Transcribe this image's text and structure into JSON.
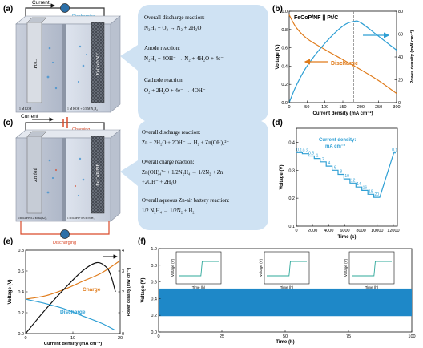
{
  "panel_labels": {
    "a": "(a)",
    "b": "(b)",
    "c": "(c)",
    "d": "(d)",
    "e": "(e)",
    "f": "(f)"
  },
  "a": {
    "current": "Current",
    "discharging": "Discharging",
    "electrode_left": "Pt/C",
    "electrode_right": "FeCoP/NF",
    "label_left": "1 M KOH",
    "label_right": "1 M KOH + 0.5 M N₂H₄",
    "reactions": [
      {
        "title": "Overall discharge reaction:",
        "eq": "N₂H₄ + O₂ → N₂ + 2H₂O"
      },
      {
        "title": "Anode reaction:",
        "eq": "N₂H₄ + 4OH⁻ → N₂ + 4H₂O + 4e⁻"
      },
      {
        "title": "Cathode reaction:",
        "eq": "O₂ + 2H₂O + 4e⁻ → 4OH⁻"
      }
    ]
  },
  "b": {
    "legend": "FeCoP/NF || Pt/C",
    "series_label": "Discharge",
    "chart_data": {
      "type": "line",
      "xlabel": "Current density (mA cm⁻²)",
      "ylabel_left": "Voltage (V)",
      "ylabel_right": "Power density (mW cm⁻²)",
      "xlim": [
        0,
        300
      ],
      "ylim_left": [
        0,
        1.0
      ],
      "ylim_right": [
        0,
        80
      ],
      "x_ticks": [
        "0",
        "50",
        "100",
        "150",
        "200",
        "250",
        "300"
      ],
      "y_ticks_left": [
        "0.0",
        "0.2",
        "0.4",
        "0.6",
        "0.8",
        "1.0"
      ],
      "y_ticks_right": [
        "0",
        "20",
        "40",
        "60",
        "80"
      ],
      "voltage": {
        "x": [
          0,
          20,
          50,
          100,
          150,
          200,
          250,
          300
        ],
        "y": [
          0.96,
          0.82,
          0.7,
          0.58,
          0.47,
          0.36,
          0.24,
          0.1
        ]
      },
      "power": {
        "x": [
          0,
          20,
          50,
          100,
          150,
          180,
          200,
          250,
          300
        ],
        "y": [
          0,
          15,
          32,
          52,
          67,
          71,
          70,
          58,
          46
        ]
      },
      "dashed_hline_v": 0.97,
      "dashed_vline_x": 180
    }
  },
  "c": {
    "current": "Current",
    "charging": "Charging",
    "discharging": "Discharging",
    "electrode_left": "Zn foil",
    "electrode_right": "FeCoP/NF",
    "label_left": "6 M KOH+ 0.2 M Zn(Ac)₂",
    "label_right": "1 M KOH + 0.5 M N₂H₄",
    "reactions": [
      {
        "title": "Overall discharge reaction:",
        "eq": "Zn + 2H₂O + 2OH⁻ → H₂ + Zn(OH)₄²⁻"
      },
      {
        "title": "Overall charge reaction:",
        "eq": "Zn(OH)₄²⁻ + 1/2N₂H₄ → 1/2N₂ + Zn",
        "eq2": "+2OH⁻ + 2H₂O"
      },
      {
        "title": "Overall aqueous Zn-air battery reaction:",
        "eq": "1/2 N₂H₄ → 1/2N₂ + H₂"
      }
    ]
  },
  "d": {
    "annotation": "Current density:",
    "annotation_unit": "mA cm⁻²",
    "chart_data": {
      "type": "line",
      "xlabel": "Time (s)",
      "ylabel": "Voltage (V)",
      "xlim": [
        0,
        12500
      ],
      "ylim": [
        0.1,
        0.45
      ],
      "x_ticks": [
        "0",
        "2000",
        "4000",
        "6000",
        "8000",
        "10000",
        "12000"
      ],
      "y_ticks": [
        "0.1",
        "0.2",
        "0.3",
        "0.4"
      ],
      "steps": [
        {
          "label": "0.1",
          "v": 0.363
        },
        {
          "label": "0.2",
          "v": 0.359
        },
        {
          "label": "0.5",
          "v": 0.351
        },
        {
          "label": "1",
          "v": 0.342
        },
        {
          "label": "2",
          "v": 0.33
        },
        {
          "label": "4",
          "v": 0.315
        },
        {
          "label": "6",
          "v": 0.3
        },
        {
          "label": "8",
          "v": 0.285
        },
        {
          "label": "10",
          "v": 0.269
        },
        {
          "label": "12",
          "v": 0.254
        },
        {
          "label": "14",
          "v": 0.24
        },
        {
          "label": "16",
          "v": 0.228
        },
        {
          "label": "18",
          "v": 0.214
        },
        {
          "label": "20",
          "v": 0.203
        },
        {
          "label": "0.1",
          "v": 0.362
        }
      ]
    }
  },
  "e": {
    "series_charge": "Charge",
    "series_discharge": "Discharge",
    "chart_data": {
      "type": "line",
      "xlabel": "Current density (mA cm⁻²)",
      "ylabel_left": "Voltage (V)",
      "ylabel_right": "Power density (mW cm⁻²)",
      "xlim": [
        0,
        20
      ],
      "ylim_left": [
        0,
        0.8
      ],
      "ylim_right": [
        0,
        4
      ],
      "x_ticks": [
        "0",
        "10",
        "20"
      ],
      "y_ticks_left": [
        "0.0",
        "0.2",
        "0.4",
        "0.6",
        "0.8"
      ],
      "y_ticks_right": [
        "0",
        "1",
        "2",
        "3",
        "4"
      ],
      "charge": {
        "x": [
          0,
          4,
          8,
          12,
          16,
          20
        ],
        "y": [
          0.33,
          0.36,
          0.42,
          0.5,
          0.58,
          0.7
        ]
      },
      "discharge": {
        "x": [
          0,
          4,
          8,
          12,
          16,
          19
        ],
        "y": [
          0.33,
          0.29,
          0.24,
          0.17,
          0.1,
          0.03
        ]
      },
      "power": {
        "x": [
          0,
          4,
          8,
          12,
          15,
          17,
          18,
          19
        ],
        "y": [
          0,
          1.1,
          2.1,
          3.0,
          3.4,
          3.2,
          2.8,
          2.0
        ]
      }
    }
  },
  "f": {
    "chart_data": {
      "type": "line",
      "xlabel": "Time (h)",
      "ylabel": "Voltage (V)",
      "xlim": [
        0,
        100
      ],
      "ylim": [
        0,
        1.0
      ],
      "x_ticks": [
        "0",
        "25",
        "50",
        "75",
        "100"
      ],
      "y_ticks": [
        "0.0",
        "0.2",
        "0.4",
        "0.6",
        "0.8",
        "1.0"
      ],
      "band_low": 0.19,
      "band_high": 0.52,
      "insets": [
        {
          "xlabel": "Time (h)",
          "ylabel": "Voltage (V)"
        },
        {
          "xlabel": "Time (h)",
          "ylabel": "Voltage (V)"
        },
        {
          "xlabel": "Time (h)",
          "ylabel": "Voltage (V)"
        }
      ]
    }
  },
  "colors": {
    "accent_blue": "#2e9fd4",
    "orange": "#e07b1a",
    "box_blue": "#cfe2f3",
    "band_blue": "#1e88c8",
    "dark_orange_red": "#d94a2a"
  }
}
